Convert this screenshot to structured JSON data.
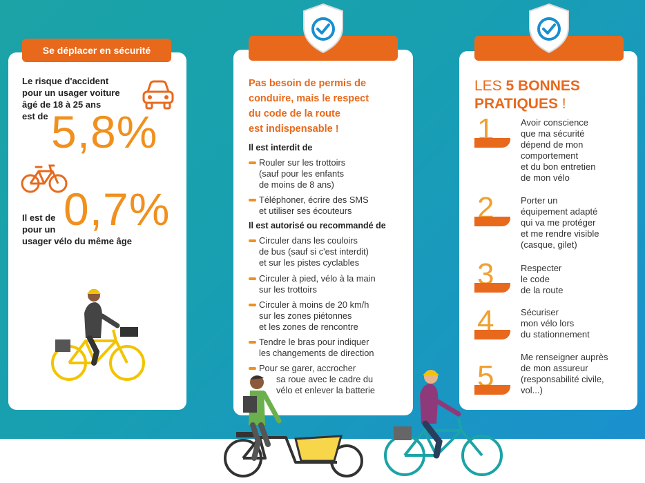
{
  "card1": {
    "banner": "Se déplacer en sécurité",
    "risk_car_text": [
      "Le risque d'accident",
      "pour un usager voiture",
      "âgé de 18 à 25 ans",
      "est de"
    ],
    "risk_car_value": "5,8%",
    "risk_bike_text": [
      "Il est de",
      "pour un",
      "usager vélo du même âge"
    ],
    "risk_bike_value": "0,7%"
  },
  "card2": {
    "lead": [
      "Pas besoin de permis de",
      "conduire, mais le respect",
      "du code de la route",
      "est indispensable !"
    ],
    "forbidden_title": "Il est interdit de",
    "forbidden": [
      [
        "Rouler sur les trottoirs",
        "(sauf pour les enfants",
        "de moins de 8 ans)"
      ],
      [
        "Téléphoner, écrire des SMS",
        "et utiliser ses écouteurs"
      ]
    ],
    "allowed_title": "Il est autorisé ou recommandé de",
    "allowed": [
      [
        "Circuler dans les couloirs",
        "de bus (sauf si c'est interdit)",
        "et sur les pistes cyclables"
      ],
      [
        "Circuler à pied, vélo à la main",
        "sur les trottoirs"
      ],
      [
        "Circuler à moins de 20 km/h",
        "sur les zones piétonnes",
        "et les zones de rencontre"
      ],
      [
        "Tendre le bras pour indiquer",
        "les changements de direction"
      ],
      [
        "Pour se garer, accrocher",
        "sa roue avec le cadre du",
        "vélo et enlever la batterie"
      ]
    ]
  },
  "card3": {
    "title_prefix": "LES",
    "title_bold": "5 BONNES",
    "title_line2": "PRATIQUES",
    "title_suffix": " !",
    "practices": [
      {
        "num": "1",
        "text": [
          "Avoir conscience",
          "que ma sécurité",
          "dépend de mon",
          "comportement",
          "et du bon entretien",
          "de mon vélo"
        ]
      },
      {
        "num": "2",
        "text": [
          "Porter un",
          "équipement adapté",
          "qui va me protéger",
          "et me rendre visible",
          "(casque, gilet)"
        ]
      },
      {
        "num": "3",
        "text": [
          "Respecter",
          "le code",
          "de la route"
        ]
      },
      {
        "num": "4",
        "text": [
          "Sécuriser",
          "mon vélo lors",
          "du stationnement"
        ]
      },
      {
        "num": "5",
        "text": [
          "Me renseigner auprès",
          "de mon assureur",
          "(responsabilité civile,",
          "vol...)"
        ]
      }
    ]
  },
  "colors": {
    "orange": "#e8691c",
    "light_orange": "#f0901e",
    "teal": "#1ba3a6",
    "blue": "#1a8fd0"
  },
  "icons": [
    "car-icon",
    "bicycle-icon",
    "shield-check-icon",
    "shield-check-icon"
  ]
}
